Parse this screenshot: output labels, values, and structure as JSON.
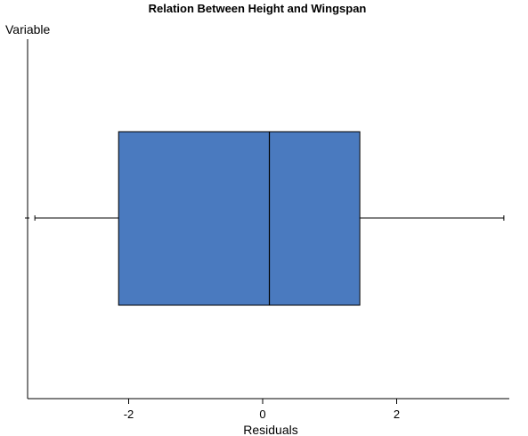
{
  "chart_data": {
    "type": "box",
    "title": "Relation Between Height and Wingspan",
    "xlabel": "Residuals",
    "ylabel": "Variable",
    "xlim": [
      -3.5,
      3.7
    ],
    "xticks": [
      -2,
      0,
      2
    ],
    "xtick_labels": [
      "-2",
      "0",
      "2"
    ],
    "grid": false,
    "box": {
      "whisker_low": -3.4,
      "q1": -2.15,
      "median": 0.1,
      "q3": 1.45,
      "whisker_high": 3.6
    },
    "box_color": "#4a7abf",
    "line_color": "#000000"
  }
}
